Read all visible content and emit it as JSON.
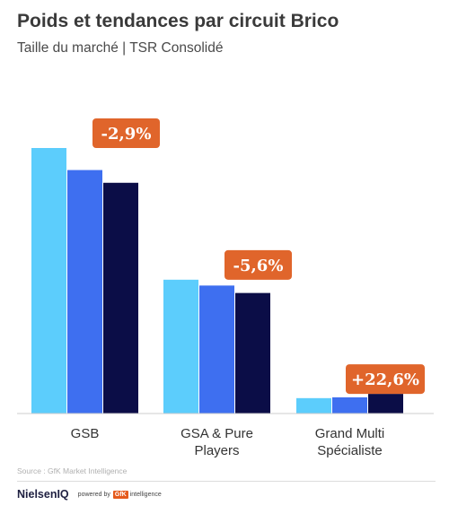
{
  "title": "Poids et tendances par circuit Brico",
  "subtitle": "Taille du marché | TSR Consolidé",
  "source": "Source : GfK Market Intelligence",
  "footer": {
    "brand": "NielsenIQ",
    "powered_by": "powered by",
    "gfk": "GfK",
    "intelligence": "intelligence"
  },
  "chart_data": {
    "type": "bar",
    "categories": [
      "GSB",
      "GSA & Pure Players",
      "Grand Multi Spécialiste"
    ],
    "category_lines": [
      [
        "GSB"
      ],
      [
        "GSA & Pure",
        "Players"
      ],
      [
        "Grand Multi",
        "Spécialiste"
      ]
    ],
    "series": [
      {
        "values": [
          100,
          50.4,
          5.8
        ],
        "color": "#5ccdfc"
      },
      {
        "values": [
          91.7,
          48.2,
          6.1
        ],
        "color": "#3e6ff0"
      },
      {
        "values": [
          86.9,
          45.4,
          7.4
        ],
        "color": "#0b0d47"
      }
    ],
    "annotations": [
      "-2,9%",
      "-5,6%",
      "+22,6%"
    ],
    "annotation_color": "#e0652b",
    "ylim": [
      0,
      100
    ],
    "grid": false,
    "legend": "none"
  }
}
